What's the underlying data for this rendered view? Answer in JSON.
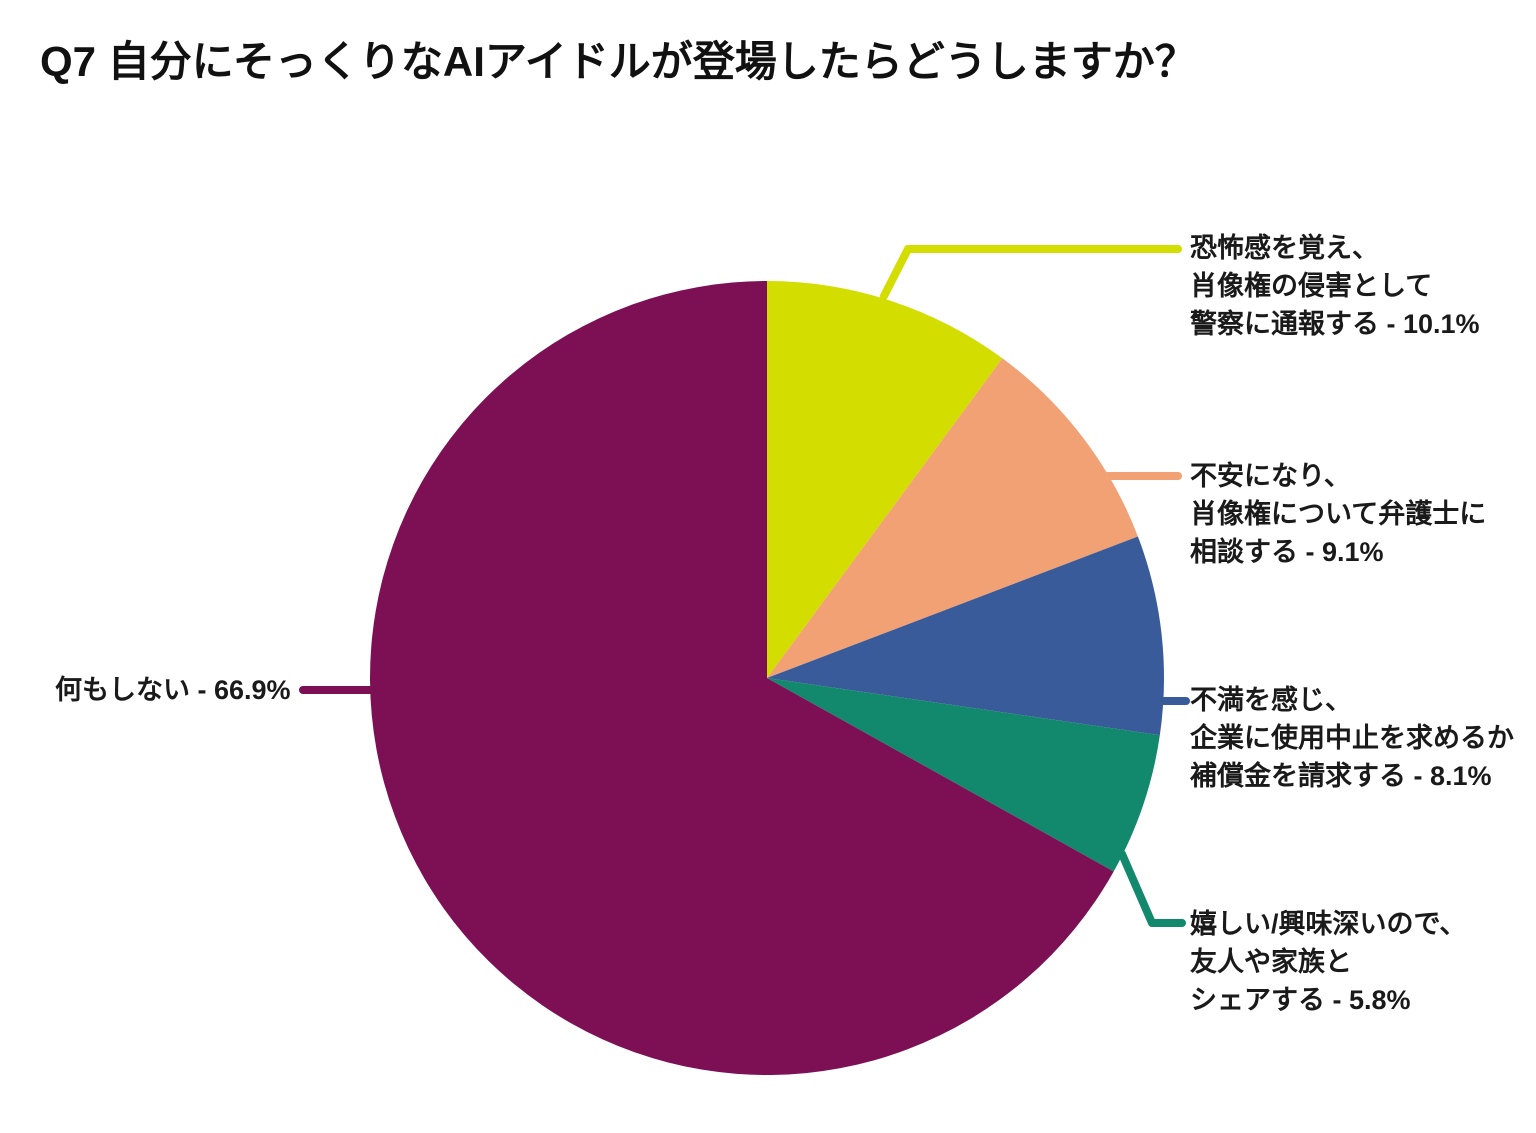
{
  "title": "Q7 自分にそっくりなAIアイドルが登場したらどうしますか？",
  "chart_data": {
    "type": "pie",
    "title": "Q7 自分にそっくりなAIアイドルが登場したらどうしますか？",
    "start_angle_deg": 0,
    "direction": "clockwise",
    "unit": "%",
    "legend_position": "outside-callout",
    "slices": [
      {
        "label": "恐怖感を覚え、肖像権の侵害として警察に通報する",
        "value": 10.1,
        "display_value": "10.1%",
        "color": "#d3de00",
        "label_lines": [
          "恐怖感を覚え、",
          "肖像権の侵害として",
          "警察に通報する - 10.1%"
        ]
      },
      {
        "label": "不安になり、肖像権について弁護士に相談する",
        "value": 9.1,
        "display_value": "9.1%",
        "color": "#f2a175",
        "label_lines": [
          "不安になり、",
          "肖像権について弁護士に",
          "相談する - 9.1%"
        ]
      },
      {
        "label": "不満を感じ、企業に使用中止を求めるか補償金を請求する",
        "value": 8.1,
        "display_value": "8.1%",
        "color": "#3a5b9a",
        "label_lines": [
          "不満を感じ、",
          "企業に使用中止を求めるか",
          "補償金を請求する - 8.1%"
        ]
      },
      {
        "label": "嬉しい/興味深いので、友人や家族とシェアする",
        "value": 5.8,
        "display_value": "5.8%",
        "color": "#12896c",
        "label_lines": [
          "嬉しい/興味深いので、",
          "友人や家族と",
          "シェアする - 5.8%"
        ]
      },
      {
        "label": "何もしない",
        "value": 66.9,
        "display_value": "66.9%",
        "color": "#7d1055",
        "label_lines": [
          "何もしない - 66.9%"
        ]
      }
    ]
  }
}
